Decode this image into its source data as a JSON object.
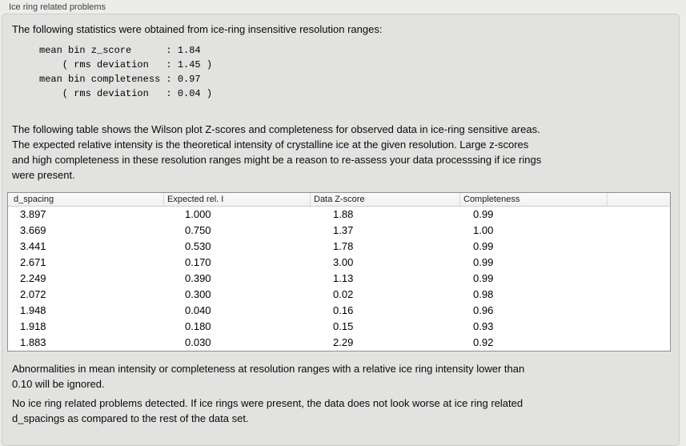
{
  "window": {
    "title": "Ice ring related problems"
  },
  "panel": {
    "intro": "The following statistics were obtained from ice-ring insensitive resolution ranges:",
    "stats_block": "mean bin z_score      : 1.84\n    ( rms deviation   : 1.45 )\nmean bin completeness : 0.97\n    ( rms deviation   : 0.04 )",
    "stats": {
      "mean_bin_z_score": "1.84",
      "z_score_rms_deviation": "1.45",
      "mean_bin_completeness": "0.97",
      "completeness_rms_deviation": "0.04"
    },
    "table_description": "The following table shows the Wilson plot Z-scores and completeness for observed data in ice-ring sensitive areas.\nThe expected relative intensity is the theoretical intensity of crystalline ice at the given resolution. Large z-scores\nand high completeness in these resolution ranges might be a reason to re-assess your data processsing if ice rings\nwere present.",
    "note_abnormalities": "Abnormalities in mean intensity or completeness at resolution ranges with a relative ice ring intensity lower than\n0.10 will be ignored.",
    "conclusion": "No ice ring related problems detected. If ice rings were present, the data does not look worse at ice ring related\nd_spacings as compared to the rest of the data set."
  },
  "table": {
    "columns": [
      "d_spacing",
      "Expected rel. I",
      "Data Z-score",
      "Completeness"
    ],
    "rows": [
      [
        "3.897",
        "1.000",
        "1.88",
        "0.99"
      ],
      [
        "3.669",
        "0.750",
        "1.37",
        "1.00"
      ],
      [
        "3.441",
        "0.530",
        "1.78",
        "0.99"
      ],
      [
        "2.671",
        "0.170",
        "3.00",
        "0.99"
      ],
      [
        "2.249",
        "0.390",
        "1.13",
        "0.99"
      ],
      [
        "2.072",
        "0.300",
        "0.02",
        "0.98"
      ],
      [
        "1.948",
        "0.040",
        "0.16",
        "0.96"
      ],
      [
        "1.918",
        "0.180",
        "0.15",
        "0.93"
      ],
      [
        "1.883",
        "0.030",
        "2.29",
        "0.92"
      ]
    ]
  },
  "colors": {
    "page_background": "#ececeb",
    "panel_background": "#e2e2e1",
    "panel_border": "#cdcdcb",
    "table_border": "#8f8f8f",
    "table_header_background": "#f5f5f5",
    "body_text": "#0a0a0a",
    "title_text": "#3f3f3f"
  }
}
